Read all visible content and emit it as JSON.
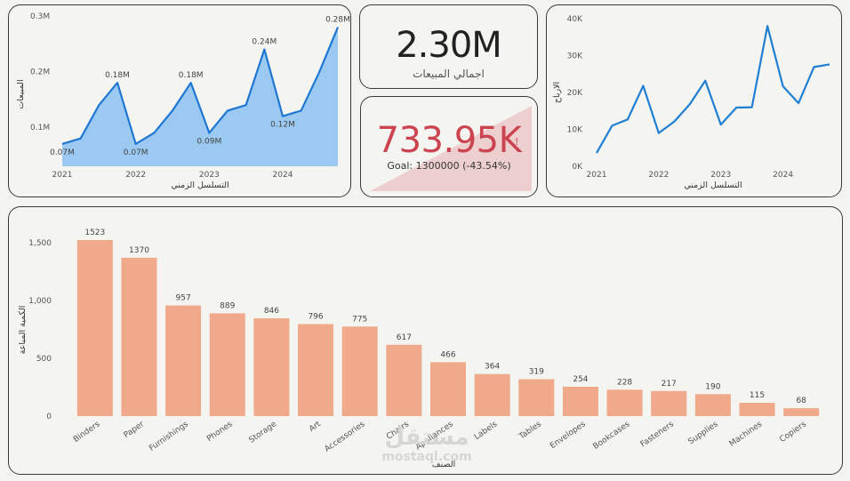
{
  "sales_chart": {
    "chart_data": {
      "type": "area",
      "title": "",
      "xlabel": "التسلسل الزمني",
      "ylabel": "المبيعات",
      "x_tick_labels": [
        "2021",
        "2022",
        "2023",
        "2024"
      ],
      "y_tick_labels": [
        "0.1M",
        "0.2M",
        "0.3M"
      ],
      "ylim": [
        0.03,
        0.3
      ],
      "series": [
        {
          "x": [
            "2021-01",
            "2021-04",
            "2021-07",
            "2021-10",
            "2022-01",
            "2022-04",
            "2022-07",
            "2022-10",
            "2023-01",
            "2023-04",
            "2023-07",
            "2023-10",
            "2024-01",
            "2024-04",
            "2024-07",
            "2024-10"
          ],
          "values": [
            0.07,
            0.08,
            0.14,
            0.18,
            0.07,
            0.09,
            0.13,
            0.18,
            0.09,
            0.13,
            0.14,
            0.24,
            0.12,
            0.13,
            0.2,
            0.28
          ]
        }
      ],
      "data_labels": [
        "0.07M",
        "",
        "",
        "0.18M",
        "0.07M",
        "",
        "",
        "0.18M",
        "0.09M",
        "",
        "",
        "0.24M",
        "0.12M",
        "",
        "",
        "0.28M"
      ],
      "color": "#1f77d4",
      "fill_color": "#9bc9f1"
    }
  },
  "total_sales": {
    "value": "2.30M",
    "label": "اجمالي المبيعات"
  },
  "kpi": {
    "value": "733.95K",
    "alert_icon": "!",
    "goal_text": "Goal: 1300000 (-43.54%)",
    "progress_fraction": 0.5646,
    "value_color": "#cc4450",
    "fill_color": "#edcfcf"
  },
  "profit_chart": {
    "chart_data": {
      "type": "line",
      "title": "",
      "xlabel": "التسلسل الزمني",
      "ylabel": "الارباح",
      "x_tick_labels": [
        "2021",
        "2022",
        "2023",
        "2024"
      ],
      "y_tick_labels": [
        "0K",
        "10K",
        "20K",
        "30K",
        "40K"
      ],
      "ylim": [
        0,
        40000
      ],
      "series": [
        {
          "x": [
            "2021-01",
            "2021-04",
            "2021-07",
            "2021-10",
            "2022-01",
            "2022-04",
            "2022-07",
            "2022-10",
            "2023-01",
            "2023-04",
            "2023-07",
            "2023-10",
            "2024-01",
            "2024-04",
            "2024-07",
            "2024-10"
          ],
          "values": [
            3600,
            11000,
            12700,
            21800,
            9000,
            12100,
            16800,
            23200,
            11300,
            15900,
            16000,
            38000,
            21700,
            17100,
            26900,
            27600
          ]
        }
      ],
      "color": "#1f7fd4"
    }
  },
  "quantity_chart": {
    "chart_data": {
      "type": "bar",
      "title": "",
      "xlabel": "الصنف",
      "ylabel": "الكمية المباعة",
      "categories": [
        "Binders",
        "Paper",
        "Furnishings",
        "Phones",
        "Storage",
        "Art",
        "Accessories",
        "Chairs",
        "Appliances",
        "Labels",
        "Tables",
        "Envelopes",
        "Bookcases",
        "Fasteners",
        "Supplies",
        "Machines",
        "Copiers"
      ],
      "values": [
        1523,
        1370,
        957,
        889,
        846,
        796,
        775,
        617,
        466,
        364,
        319,
        254,
        228,
        217,
        190,
        115,
        68
      ],
      "y_tick_labels": [
        "0",
        "500",
        "1,000",
        "1,500"
      ],
      "ylim": [
        0,
        1500
      ],
      "color": "#f0a98a"
    }
  },
  "watermark": {
    "line1": "مستقل",
    "line2": "mostaql.com"
  }
}
